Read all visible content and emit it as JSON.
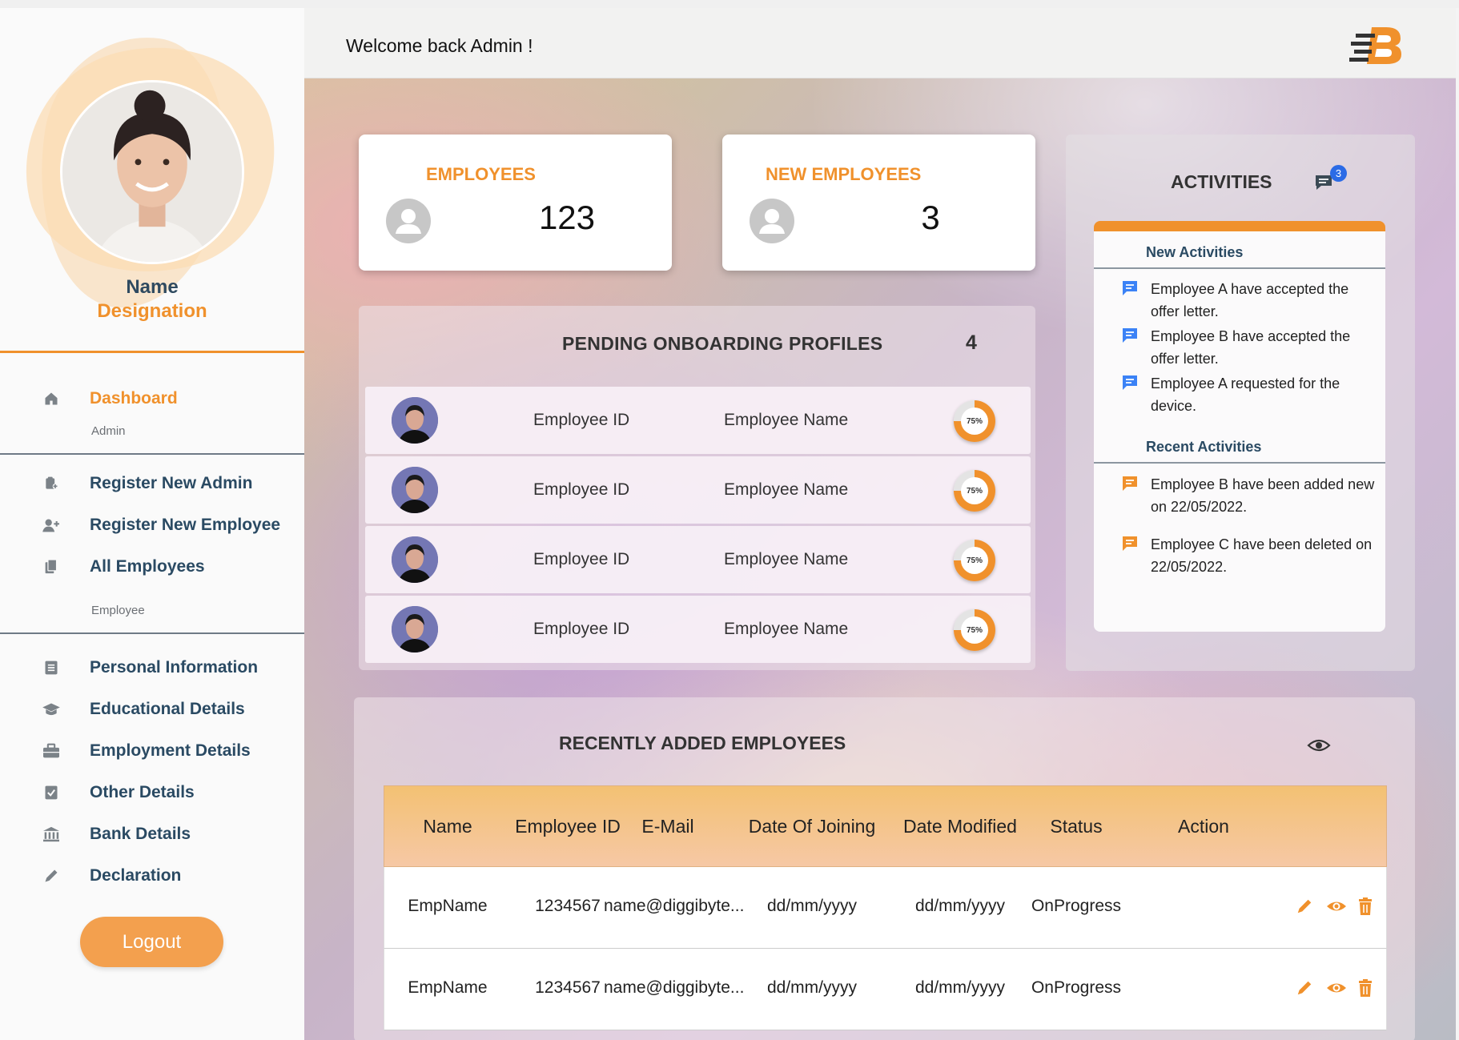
{
  "header": {
    "welcome": "Welcome back Admin !"
  },
  "profile": {
    "name": "Name",
    "designation": "Designation"
  },
  "sidebar": {
    "dashboard": {
      "label": "Dashboard",
      "icon": "home-icon"
    },
    "admin_section": "Admin",
    "admin_items": [
      {
        "label": "Register New Admin",
        "icon": "register-admin-icon"
      },
      {
        "label": "Register New Employee",
        "icon": "add-user-icon"
      },
      {
        "label": "All Employees",
        "icon": "documents-icon"
      }
    ],
    "employee_section": "Employee",
    "employee_items": [
      {
        "label": "Personal Information",
        "icon": "form-icon"
      },
      {
        "label": "Educational Details",
        "icon": "graduation-cap-icon"
      },
      {
        "label": "Employment Details",
        "icon": "briefcase-icon"
      },
      {
        "label": "Other Details",
        "icon": "checklist-icon"
      },
      {
        "label": "Bank Details",
        "icon": "bank-icon"
      },
      {
        "label": "Declaration",
        "icon": "pencil-icon"
      }
    ],
    "logout": "Logout"
  },
  "stats": {
    "employees": {
      "title": "EMPLOYEES",
      "value": "123"
    },
    "new_employees": {
      "title": "NEW EMPLOYEES",
      "value": "3"
    }
  },
  "pending": {
    "title": "PENDING ONBOARDING PROFILES",
    "count": "4",
    "rows": [
      {
        "id": "Employee ID",
        "name": "Employee Name",
        "progress": "75%"
      },
      {
        "id": "Employee ID",
        "name": "Employee Name",
        "progress": "75%"
      },
      {
        "id": "Employee ID",
        "name": "Employee Name",
        "progress": "75%"
      },
      {
        "id": "Employee ID",
        "name": "Employee Name",
        "progress": "75%"
      }
    ]
  },
  "activities": {
    "title": "ACTIVITIES",
    "badge": "3",
    "new_label": "New Activities",
    "new_items": [
      "Employee A have accepted the offer letter.",
      "Employee B have accepted the offer letter.",
      "Employee A requested for the device."
    ],
    "recent_label": "Recent Activities",
    "recent_items": [
      "Employee B have been added new on 22/05/2022.",
      "Employee C have been deleted on 22/05/2022."
    ]
  },
  "recent": {
    "title": "RECENTLY ADDED EMPLOYEES",
    "columns": [
      "Name",
      "Employee ID",
      "E-Mail",
      "Date Of Joining",
      "Date Modified",
      "Status",
      "Action"
    ],
    "rows": [
      {
        "name": "EmpName",
        "id": "1234567",
        "email": "name@diggibyte...",
        "doj": "dd/mm/yyyy",
        "modified": "dd/mm/yyyy",
        "status": "OnProgress"
      },
      {
        "name": "EmpName",
        "id": "1234567",
        "email": "name@diggibyte...",
        "doj": "dd/mm/yyyy",
        "modified": "dd/mm/yyyy",
        "status": "OnProgress"
      }
    ]
  },
  "colors": {
    "accent": "#f0912c",
    "nav_text": "#2a4a63",
    "badge": "#2b6be6",
    "activity_new_icon": "#3b82f6"
  }
}
